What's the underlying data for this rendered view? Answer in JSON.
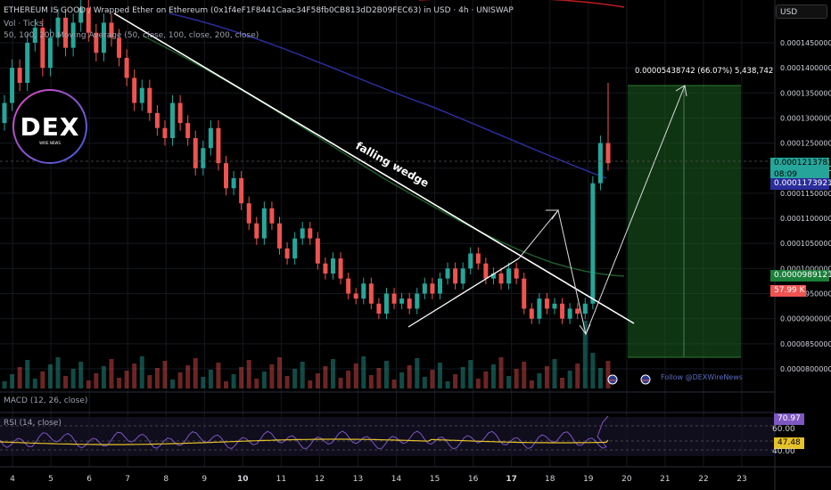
{
  "header": {
    "title": "ETHEREUM IS GOOD / Wrapped Ether on Ethereum (0x1f4eF1F8441Caac34F58fb0CB813dD2B09FEC63) in USD · 4h · UNISWAP",
    "vol_label": "Vol · Ticks",
    "ma_label": "50, 100, 200 Moving Average (50, close, 100, close, 200, close)"
  },
  "logo": {
    "text": "DEX",
    "sub": "WIRE NEWS"
  },
  "currency_button": "USD",
  "price_labels": [
    "0.00014500000",
    "0.00014000000",
    "0.00013500000",
    "0.00013000000",
    "0.00012500000",
    "0.00012000000",
    "0.00011500000",
    "0.00011000000",
    "0.00010500000",
    "0.00010000000",
    "0.00009500000",
    "0.00009000000",
    "0.00008500000",
    "0.00008000000"
  ],
  "tags": {
    "last_price": "0.00012137838",
    "countdown": "08:09",
    "ma_blue": "0.00011739214",
    "ma_green": "0.00009891210",
    "volume": "57.99 K"
  },
  "annotations": {
    "falling_wedge": "falling wedge",
    "target": "0.00005438742 (66.07%) 5,438,742",
    "follow": "Follow @DEXWireNews"
  },
  "macd_label": "MACD (12, 26, close)",
  "rsi": {
    "label": "RSI (14, close)",
    "value": "70.97",
    "ma_value": "47.48",
    "levels": [
      "60.00",
      "40.00"
    ]
  },
  "x_labels": [
    "4",
    "5",
    "6",
    "7",
    "8",
    "9",
    "10",
    "11",
    "12",
    "13",
    "14",
    "15",
    "16",
    "17",
    "18",
    "19",
    "20",
    "21",
    "22",
    "23"
  ],
  "colors": {
    "up": "#26a69a",
    "down": "#ef5350",
    "ma50": "#2e7d32",
    "ma100": "#2a2e9a",
    "ma200": "#b71c1c",
    "rsi": "#7e57c2",
    "rsi_ma": "#e6c229",
    "tp_zone": "#1b5e20"
  },
  "chart_data": {
    "type": "candlestick",
    "timeframe": "4h",
    "x_label_values": [
      4,
      5,
      6,
      7,
      8,
      9,
      10,
      11,
      12,
      13,
      14,
      15,
      16,
      17,
      18,
      19,
      20,
      21,
      22,
      23
    ],
    "y_ticks": [
      0.000145,
      0.00014,
      0.000135,
      0.00013,
      0.000125,
      0.00012,
      0.000115,
      0.00011,
      0.000105,
      0.0001,
      9.5e-05,
      9e-05,
      8.5e-05,
      8e-05
    ],
    "closes": [
      0.000133,
      0.00014,
      0.000137,
      0.000145,
      0.000148,
      0.00014,
      0.000146,
      0.00015,
      0.000144,
      0.000149,
      0.000152,
      0.000147,
      0.000143,
      0.000149,
      0.000146,
      0.000142,
      0.000138,
      0.000133,
      0.000136,
      0.000131,
      0.000128,
      0.000126,
      0.000133,
      0.000129,
      0.000126,
      0.00012,
      0.000124,
      0.000128,
      0.000121,
      0.000116,
      0.000118,
      0.000113,
      0.000109,
      0.000106,
      0.000112,
      0.000109,
      0.000104,
      0.000102,
      0.000106,
      0.000108,
      0.000106,
      0.000101,
      9.9e-05,
      0.000102,
      9.8e-05,
      9.5e-05,
      9.4e-05,
      9.7e-05,
      9.3e-05,
      9.1e-05,
      9.5e-05,
      9.3e-05,
      9.4e-05,
      9.2e-05,
      9.5e-05,
      9.7e-05,
      9.5e-05,
      9.8e-05,
      0.0001,
      9.7e-05,
      0.0001,
      0.000103,
      0.000101,
      9.8e-05,
      9.9e-05,
      9.7e-05,
      0.0001,
      9.8e-05,
      9.2e-05,
      9e-05,
      9.4e-05,
      9.2e-05,
      9.3e-05,
      9e-05,
      9.2e-05,
      9.1e-05,
      9.3e-05,
      0.000117,
      0.000125,
      0.000121
    ]
  }
}
